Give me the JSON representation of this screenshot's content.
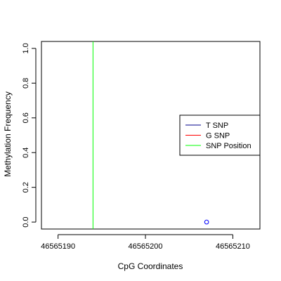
{
  "chart_data": {
    "type": "scatter",
    "xlabel": "CpG Coordinates",
    "ylabel": "Methylation Frequency",
    "xlim": [
      46565188.1,
      46565213.1
    ],
    "ylim": [
      -0.04,
      1.04
    ],
    "x_ticks": [
      46565190,
      46565200,
      46565210
    ],
    "x_tick_labels": [
      "46565190",
      "46565200",
      "46565210"
    ],
    "y_ticks": [
      0.0,
      0.2,
      0.4,
      0.6,
      0.8,
      1.0
    ],
    "y_tick_labels": [
      "0.0",
      "0.2",
      "0.4",
      "0.6",
      "0.8",
      "1.0"
    ],
    "grid": false,
    "legend_position": "right",
    "series": [
      {
        "name": "T SNP",
        "color": "#00008b",
        "style": "line",
        "points": []
      },
      {
        "name": "G SNP",
        "color": "#ff0000",
        "style": "line",
        "points": []
      },
      {
        "name": "",
        "color": "#0000ff",
        "style": "open-circle",
        "points": [
          {
            "x": 46565207,
            "y": 0.0
          }
        ]
      }
    ],
    "snp_position": {
      "name": "SNP Position",
      "x": 46565194,
      "color": "#00ff00"
    },
    "legend": [
      {
        "label": "T SNP",
        "color": "#00008b"
      },
      {
        "label": "G SNP",
        "color": "#ff0000"
      },
      {
        "label": "SNP Position",
        "color": "#00ff00"
      }
    ]
  }
}
